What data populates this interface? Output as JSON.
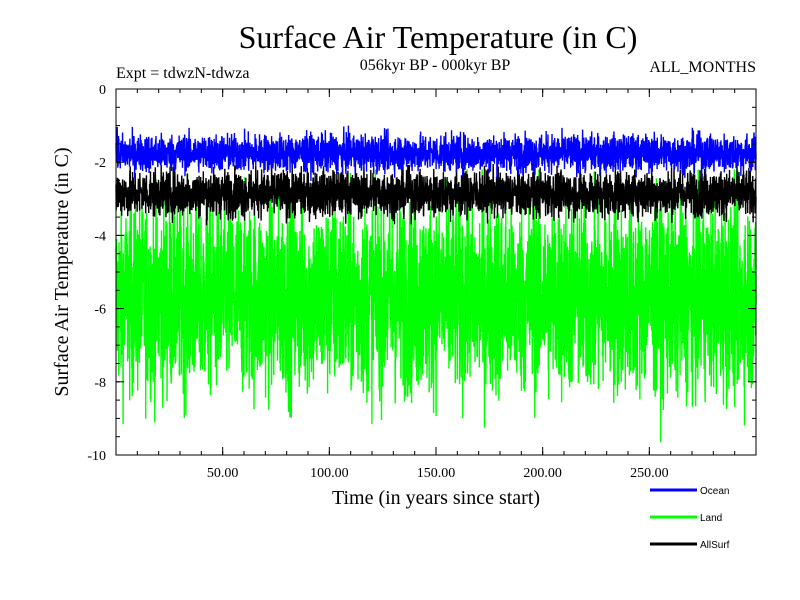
{
  "chart_data": {
    "type": "line",
    "title": "Surface Air Temperature (in C)",
    "subtitle_left": "Expt = tdwzN-tdwza",
    "subtitle_center": "056kyr BP - 000kyr BP",
    "subtitle_right": "ALL_MONTHS",
    "xlabel": "Time (in years since start)",
    "ylabel": "Surface Air Temperature (in C)",
    "xlim": [
      0,
      300
    ],
    "ylim": [
      -10,
      0
    ],
    "x_ticks": [
      50,
      100,
      150,
      200,
      250
    ],
    "x_tick_labels": [
      "50.00",
      "100.00",
      "150.00",
      "200.00",
      "250.00"
    ],
    "y_ticks": [
      0,
      -2,
      -4,
      -6,
      -8,
      -10
    ],
    "y_tick_labels": [
      "0",
      "-2",
      "-4",
      "-6",
      "-8",
      "-10"
    ],
    "grid": false,
    "legend_position": "bottom-right",
    "series": [
      {
        "name": "Ocean",
        "color": "#0000ff",
        "mean": -1.75,
        "noise": 0.28,
        "min": -2.55,
        "max": -1.0
      },
      {
        "name": "Land",
        "color": "#00ff00",
        "mean": -5.7,
        "noise": 1.45,
        "min": -9.7,
        "max": -2.2
      },
      {
        "name": "AllSurf",
        "color": "#000000",
        "mean": -2.85,
        "noise": 0.35,
        "min": -3.9,
        "max": -2.0
      }
    ]
  }
}
